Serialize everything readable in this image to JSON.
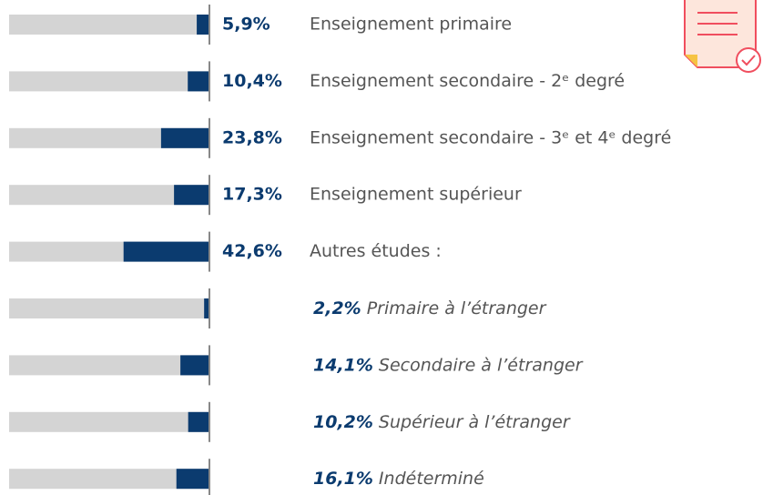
{
  "chart_data": {
    "type": "bar",
    "categories": [
      "Enseignement primaire",
      "Enseignement secondaire - 2ᵉ degré",
      "Enseignement secondaire - 3ᵉ et 4ᵉ degré",
      "Enseignement supérieur",
      "Autres études :"
    ],
    "values": [
      5.9,
      10.4,
      23.8,
      17.3,
      42.6
    ],
    "value_labels": [
      "5,9%",
      "10,4%",
      "23,8%",
      "17,3%",
      "42,6%"
    ],
    "breakdown": {
      "categories": [
        "Primaire à l’étranger",
        "Secondaire à l’étranger",
        "Supérieur à l’étranger",
        "Indéterminé"
      ],
      "values": [
        2.2,
        14.1,
        10.2,
        16.1
      ],
      "value_labels": [
        "2,2%",
        "14,1%",
        "10,2%",
        "16,1%"
      ]
    },
    "color": "#0b3b6f",
    "track_color": "#d4d4d4",
    "xlim": [
      0,
      100
    ]
  }
}
